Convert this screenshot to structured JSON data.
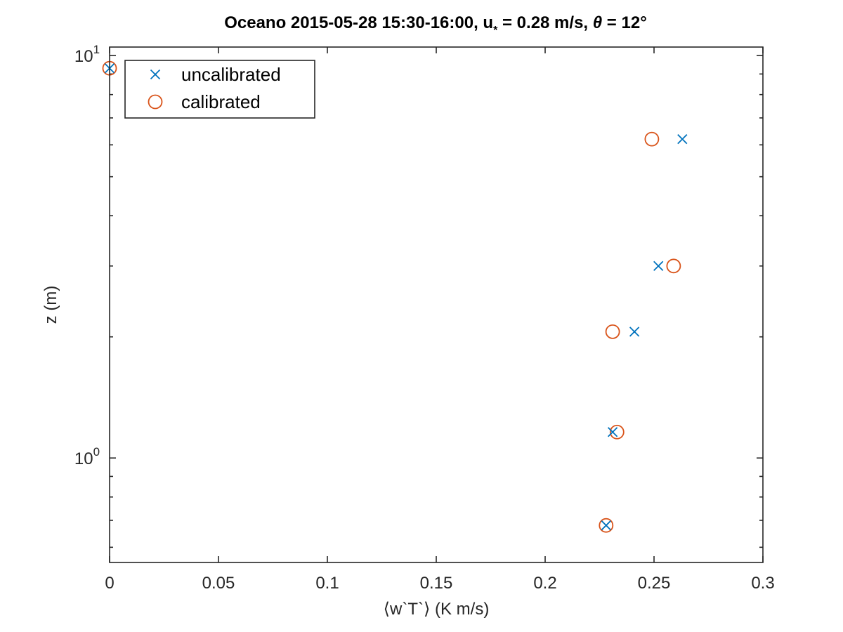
{
  "chart_data": {
    "type": "scatter",
    "title": {
      "main": "Oceano 2015-05-28 15:30-16:00, u",
      "sub": "*",
      "after_sub": " = 0.28 m/s, ",
      "theta": "θ",
      "after_theta": " = 12°"
    },
    "xlabel": "⟨w`T`⟩ (K m/s)",
    "ylabel": "z (m)",
    "xlim": [
      0,
      0.3
    ],
    "ylim": [
      0.55,
      10.5
    ],
    "yscale": "log",
    "x_ticks": [
      {
        "value": 0,
        "label": "0"
      },
      {
        "value": 0.05,
        "label": "0.05"
      },
      {
        "value": 0.1,
        "label": "0.1"
      },
      {
        "value": 0.15,
        "label": "0.15"
      },
      {
        "value": 0.2,
        "label": "0.2"
      },
      {
        "value": 0.25,
        "label": "0.25"
      },
      {
        "value": 0.3,
        "label": "0.3"
      }
    ],
    "y_major_ticks": [
      {
        "value": 1,
        "base": "10",
        "exp": "0"
      },
      {
        "value": 10,
        "base": "10",
        "exp": "1"
      }
    ],
    "y_minor_ticks": [
      0.6,
      0.7,
      0.8,
      0.9,
      2,
      3,
      4,
      5,
      6,
      7,
      8,
      9
    ],
    "grid": false,
    "legend": {
      "placement": "top-left"
    },
    "series": [
      {
        "name": "uncalibrated",
        "marker": "x",
        "color": "#0072BD",
        "points": [
          {
            "x": 0.0,
            "y": 9.3
          },
          {
            "x": 0.263,
            "y": 6.2
          },
          {
            "x": 0.252,
            "y": 3.0
          },
          {
            "x": 0.241,
            "y": 2.06
          },
          {
            "x": 0.231,
            "y": 1.16
          },
          {
            "x": 0.228,
            "y": 0.68
          }
        ]
      },
      {
        "name": "calibrated",
        "marker": "o",
        "color": "#D95319",
        "points": [
          {
            "x": 0.0,
            "y": 9.3
          },
          {
            "x": 0.249,
            "y": 6.2
          },
          {
            "x": 0.259,
            "y": 3.0
          },
          {
            "x": 0.231,
            "y": 2.06
          },
          {
            "x": 0.233,
            "y": 1.16
          },
          {
            "x": 0.228,
            "y": 0.68
          }
        ]
      }
    ]
  }
}
